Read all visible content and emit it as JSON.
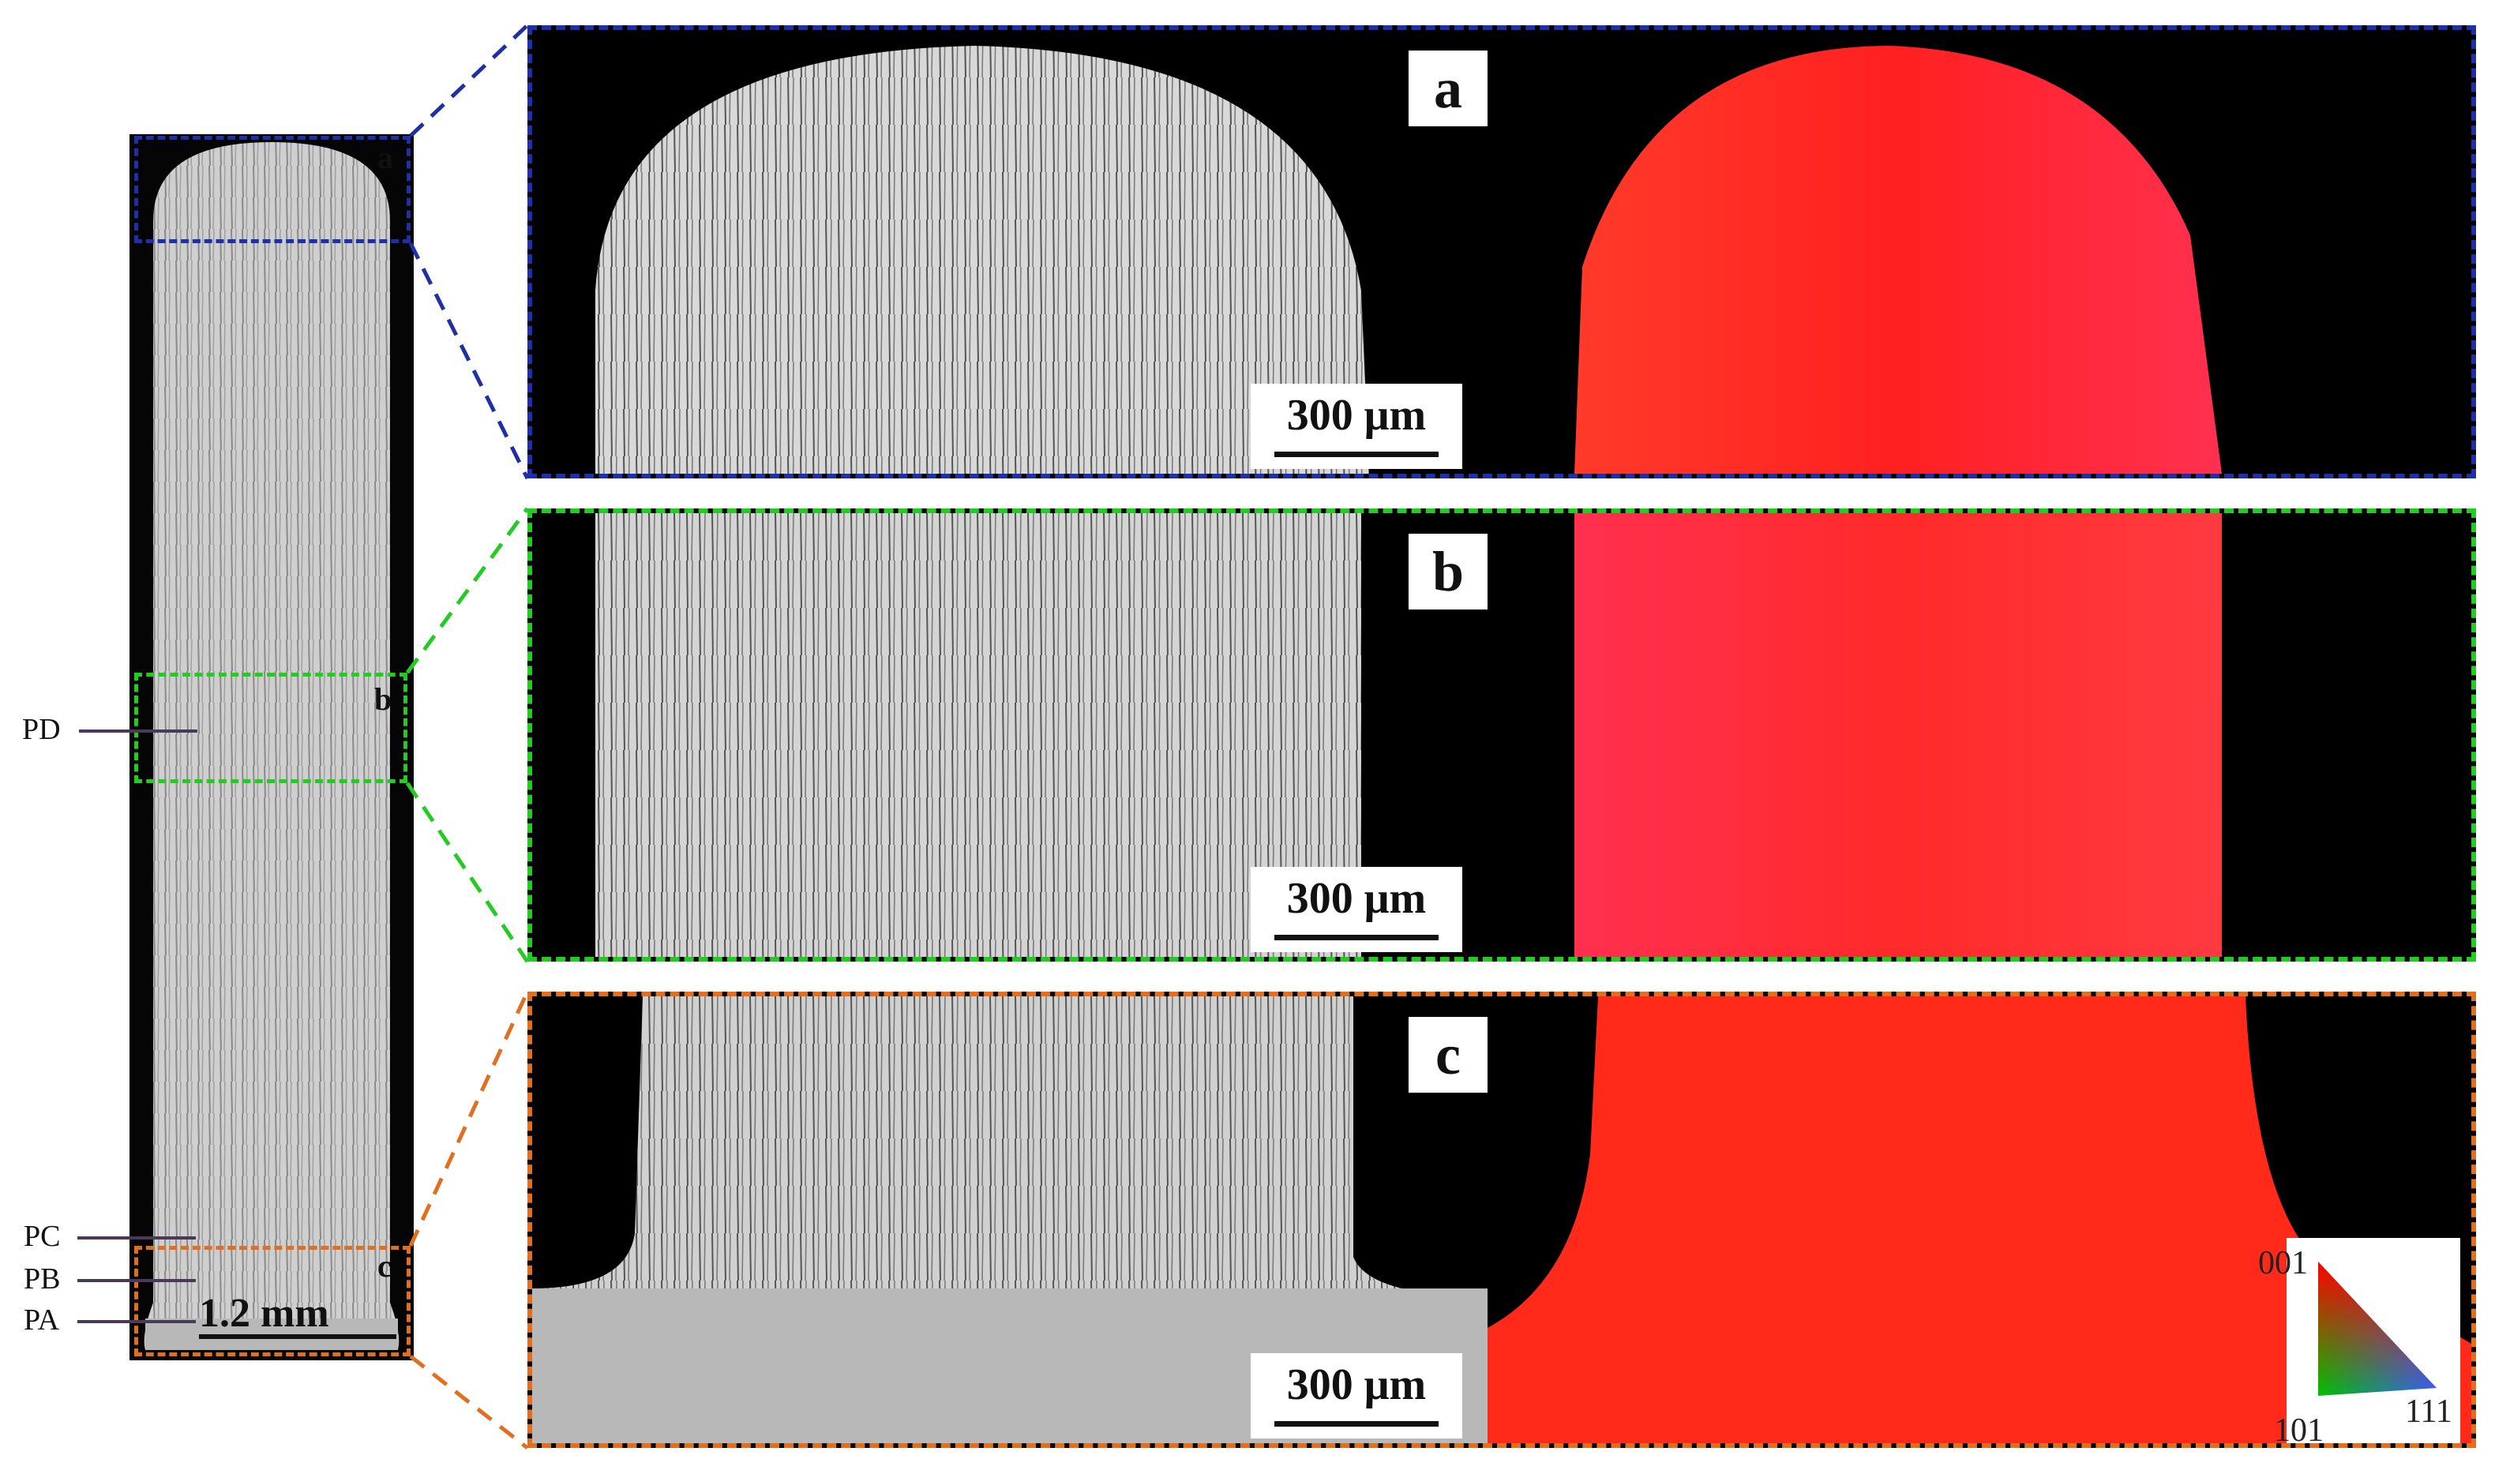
{
  "overview": {
    "roi_labels": {
      "a": "a",
      "b": "b",
      "c": "c"
    },
    "side_labels": [
      "PD",
      "PC",
      "PB",
      "PA"
    ],
    "scale_bar": "1.2 mm"
  },
  "panels": [
    {
      "id": "a",
      "letter": "a",
      "scale_bar": "300 μm"
    },
    {
      "id": "b",
      "letter": "b",
      "scale_bar": "300 μm"
    },
    {
      "id": "c",
      "letter": "c",
      "scale_bar": "300 μm"
    }
  ],
  "ipf_legend": {
    "top": "001",
    "bottom_left": "101",
    "bottom_right": "111"
  },
  "colors": {
    "roi_a": "#1f2fa6",
    "roi_b": "#22cc22",
    "roi_c": "#e07020",
    "ipf_main": "#ff2a1a"
  }
}
